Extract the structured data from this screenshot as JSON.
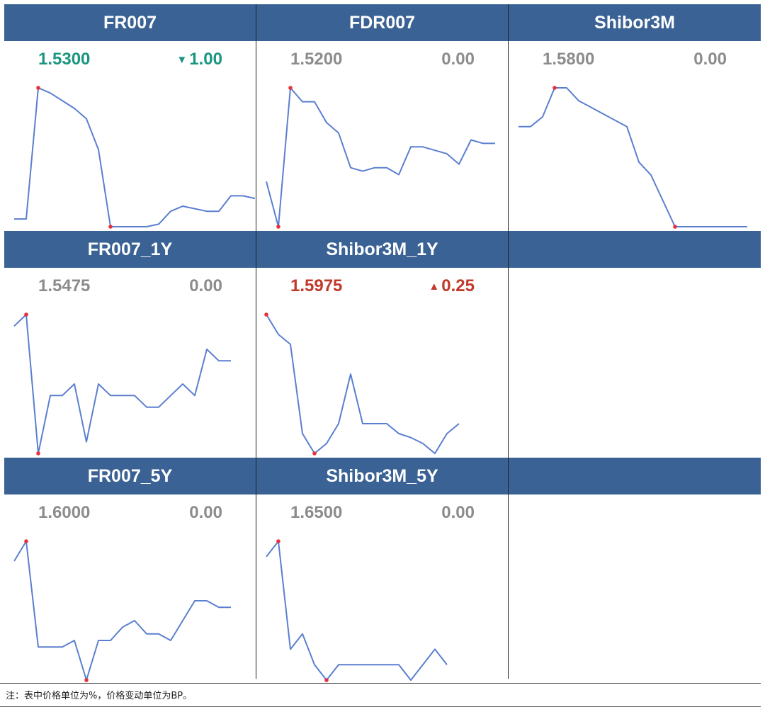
{
  "colors": {
    "header_bg": "#3a6294",
    "line": "#5b7fcf",
    "marker": "#e8303a",
    "up": "#c0392b",
    "down": "#1a9580",
    "flat": "#8c8c8c"
  },
  "note": "注：表中价格单位为%，价格变动单位为BP。",
  "chart_data": [
    {
      "type": "line",
      "title": "FR007",
      "value": "1.5300",
      "change": "1.00",
      "direction": "down",
      "values": [
        1.45,
        1.45,
        1.96,
        1.94,
        1.91,
        1.88,
        1.84,
        1.72,
        1.42,
        1.42,
        1.42,
        1.42,
        1.43,
        1.48,
        1.5,
        1.49,
        1.48,
        1.48,
        1.54,
        1.54,
        1.53
      ]
    },
    {
      "type": "line",
      "title": "FDR007",
      "value": "1.5200",
      "change": "0.00",
      "direction": "flat",
      "values": [
        1.64,
        1.51,
        1.91,
        1.87,
        1.87,
        1.81,
        1.78,
        1.68,
        1.67,
        1.68,
        1.68,
        1.66,
        1.74,
        1.74,
        1.73,
        1.72,
        1.69,
        1.76,
        1.75,
        1.75
      ]
    },
    {
      "type": "line",
      "title": "Shibor3M",
      "value": "1.5800",
      "change": "0.00",
      "direction": "flat",
      "values": [
        1.635,
        1.635,
        1.638,
        1.647,
        1.647,
        1.643,
        1.641,
        1.639,
        1.637,
        1.635,
        1.624,
        1.62,
        1.612,
        1.604,
        1.604,
        1.604,
        1.604,
        1.604,
        1.604,
        1.604
      ]
    },
    {
      "type": "line",
      "title": "FR007_1Y",
      "value": "1.5475",
      "change": "0.00",
      "direction": "flat",
      "values": [
        1.595,
        1.6,
        1.54,
        1.565,
        1.565,
        1.57,
        1.545,
        1.57,
        1.565,
        1.565,
        1.565,
        1.56,
        1.56,
        1.565,
        1.57,
        1.565,
        1.585,
        1.58,
        1.58
      ]
    },
    {
      "type": "line",
      "title": "Shibor3M_1Y",
      "value": "1.5975",
      "change": "0.25",
      "direction": "up",
      "values": [
        1.66,
        1.65,
        1.645,
        1.6,
        1.59,
        1.595,
        1.605,
        1.63,
        1.605,
        1.605,
        1.605,
        1.6,
        1.598,
        1.595,
        1.59,
        1.6,
        1.605
      ]
    },
    {
      "type": "line",
      "title": "FR007_5Y",
      "value": "1.6000",
      "change": "0.00",
      "direction": "flat",
      "values": [
        1.675,
        1.69,
        1.61,
        1.61,
        1.61,
        1.615,
        1.585,
        1.615,
        1.615,
        1.625,
        1.63,
        1.62,
        1.62,
        1.615,
        1.63,
        1.645,
        1.645,
        1.64,
        1.64
      ]
    },
    {
      "type": "line",
      "title": "Shibor3M_5Y",
      "value": "1.6500",
      "change": "0.00",
      "direction": "flat",
      "values": [
        1.73,
        1.74,
        1.67,
        1.68,
        1.66,
        1.65,
        1.66,
        1.66,
        1.66,
        1.66,
        1.66,
        1.66,
        1.65,
        1.66,
        1.67,
        1.66
      ]
    }
  ]
}
